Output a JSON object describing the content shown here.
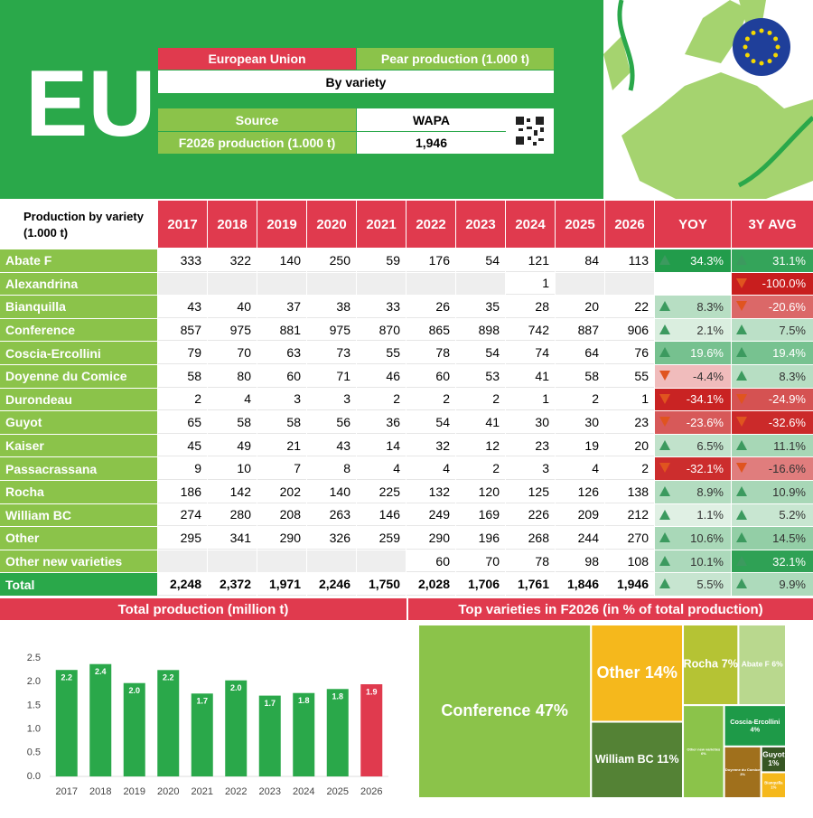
{
  "header": {
    "title": "EU",
    "region": "European Union",
    "measure": "Pear production (1.000 t)",
    "subtitle": "By variety",
    "source_label": "Source",
    "source": "WAPA",
    "forecast_label": "F2026 production (1.000 t)",
    "forecast_value": "1,946"
  },
  "table": {
    "corner": "Production by variety (1.000 t)",
    "columns": [
      "2017",
      "2018",
      "2019",
      "2020",
      "2021",
      "2022",
      "2023",
      "2024",
      "2025",
      "2026",
      "YOY",
      "3Y AVG"
    ],
    "rows": [
      [
        "Abate F",
        "333",
        "322",
        "140",
        "250",
        "59",
        "176",
        "54",
        "121",
        "84",
        "113",
        "34.3%",
        "31.1%"
      ],
      [
        "Alexandrina",
        null,
        null,
        null,
        null,
        null,
        null,
        null,
        "1",
        null,
        null,
        null,
        "-100.0%"
      ],
      [
        "Bianquilla",
        "43",
        "40",
        "37",
        "38",
        "33",
        "26",
        "35",
        "28",
        "20",
        "22",
        "8.3%",
        "-20.6%"
      ],
      [
        "Conference",
        "857",
        "975",
        "881",
        "975",
        "870",
        "865",
        "898",
        "742",
        "887",
        "906",
        "2.1%",
        "7.5%"
      ],
      [
        "Coscia-Ercollini",
        "79",
        "70",
        "63",
        "73",
        "55",
        "78",
        "54",
        "74",
        "64",
        "76",
        "19.6%",
        "19.4%"
      ],
      [
        "Doyenne du Comice",
        "58",
        "80",
        "60",
        "71",
        "46",
        "60",
        "53",
        "41",
        "58",
        "55",
        "-4.4%",
        "8.3%"
      ],
      [
        "Durondeau",
        "2",
        "4",
        "3",
        "3",
        "2",
        "2",
        "2",
        "1",
        "2",
        "1",
        "-34.1%",
        "-24.9%"
      ],
      [
        "Guyot",
        "65",
        "58",
        "58",
        "56",
        "36",
        "54",
        "41",
        "30",
        "30",
        "23",
        "-23.6%",
        "-32.6%"
      ],
      [
        "Kaiser",
        "45",
        "49",
        "21",
        "43",
        "14",
        "32",
        "12",
        "23",
        "19",
        "20",
        "6.5%",
        "11.1%"
      ],
      [
        "Passacrassana",
        "9",
        "10",
        "7",
        "8",
        "4",
        "4",
        "2",
        "3",
        "4",
        "2",
        "-32.1%",
        "-16.6%"
      ],
      [
        "Rocha",
        "186",
        "142",
        "202",
        "140",
        "225",
        "132",
        "120",
        "125",
        "126",
        "138",
        "8.9%",
        "10.9%"
      ],
      [
        "William BC",
        "274",
        "280",
        "208",
        "263",
        "146",
        "249",
        "169",
        "226",
        "209",
        "212",
        "1.1%",
        "5.2%"
      ],
      [
        "Other",
        "295",
        "341",
        "290",
        "326",
        "259",
        "290",
        "196",
        "268",
        "244",
        "270",
        "10.6%",
        "14.5%"
      ],
      [
        "Other new varieties",
        null,
        null,
        null,
        null,
        null,
        "60",
        "70",
        "78",
        "98",
        "108",
        "10.1%",
        "32.1%"
      ],
      [
        "Total",
        "2,248",
        "2,372",
        "1,971",
        "2,246",
        "1,750",
        "2,028",
        "1,706",
        "1,761",
        "1,846",
        "1,946",
        "5.5%",
        "9.9%"
      ]
    ]
  },
  "chart_data": [
    {
      "type": "bar",
      "title": "Total production (million t)",
      "categories": [
        "2017",
        "2018",
        "2019",
        "2020",
        "2021",
        "2022",
        "2023",
        "2024",
        "2025",
        "2026"
      ],
      "values": [
        2.248,
        2.372,
        1.971,
        2.246,
        1.75,
        2.028,
        1.706,
        1.761,
        1.846,
        1.946
      ],
      "value_labels": [
        "2.2",
        "2.4",
        "2.0",
        "2.2",
        "1.7",
        "2.0",
        "1.7",
        "1.8",
        "1.8",
        "1.9"
      ],
      "colors": [
        "#2aa84a",
        "#2aa84a",
        "#2aa84a",
        "#2aa84a",
        "#2aa84a",
        "#2aa84a",
        "#2aa84a",
        "#2aa84a",
        "#2aa84a",
        "#e03a4e"
      ],
      "ylim": [
        0,
        2.5
      ],
      "yticks": [
        {
          "value": 0,
          "label": "0.0"
        },
        0.5,
        {
          "value": 1,
          "label": "1.0"
        },
        1.5,
        {
          "value": 2,
          "label": "2.0"
        },
        2.5
      ]
    },
    {
      "type": "treemap",
      "title": "Top varieties in F2026 (in % of total production)",
      "names": [
        "Conference",
        "Other",
        "William BC",
        "Rocha",
        "Abate F",
        "Other new varieties",
        "Coscia-Ercollini",
        "Doyenne du Comice",
        "Guyot",
        "Bianquilla"
      ],
      "values": [
        47,
        14,
        11,
        7,
        6,
        6,
        4,
        3,
        1,
        1
      ],
      "value_labels": [
        "47%",
        "14%",
        "11%",
        "7%",
        "6%",
        "6%",
        "4%",
        "3%",
        "1%",
        "1%"
      ],
      "colors": [
        "#8bc34a",
        "#f5b81c",
        "#548235",
        "#b5c334",
        "#b9d88e",
        "#8bc34a",
        "#1e9a48",
        "#a0701c",
        "#375623",
        "#f5b81c"
      ]
    }
  ]
}
